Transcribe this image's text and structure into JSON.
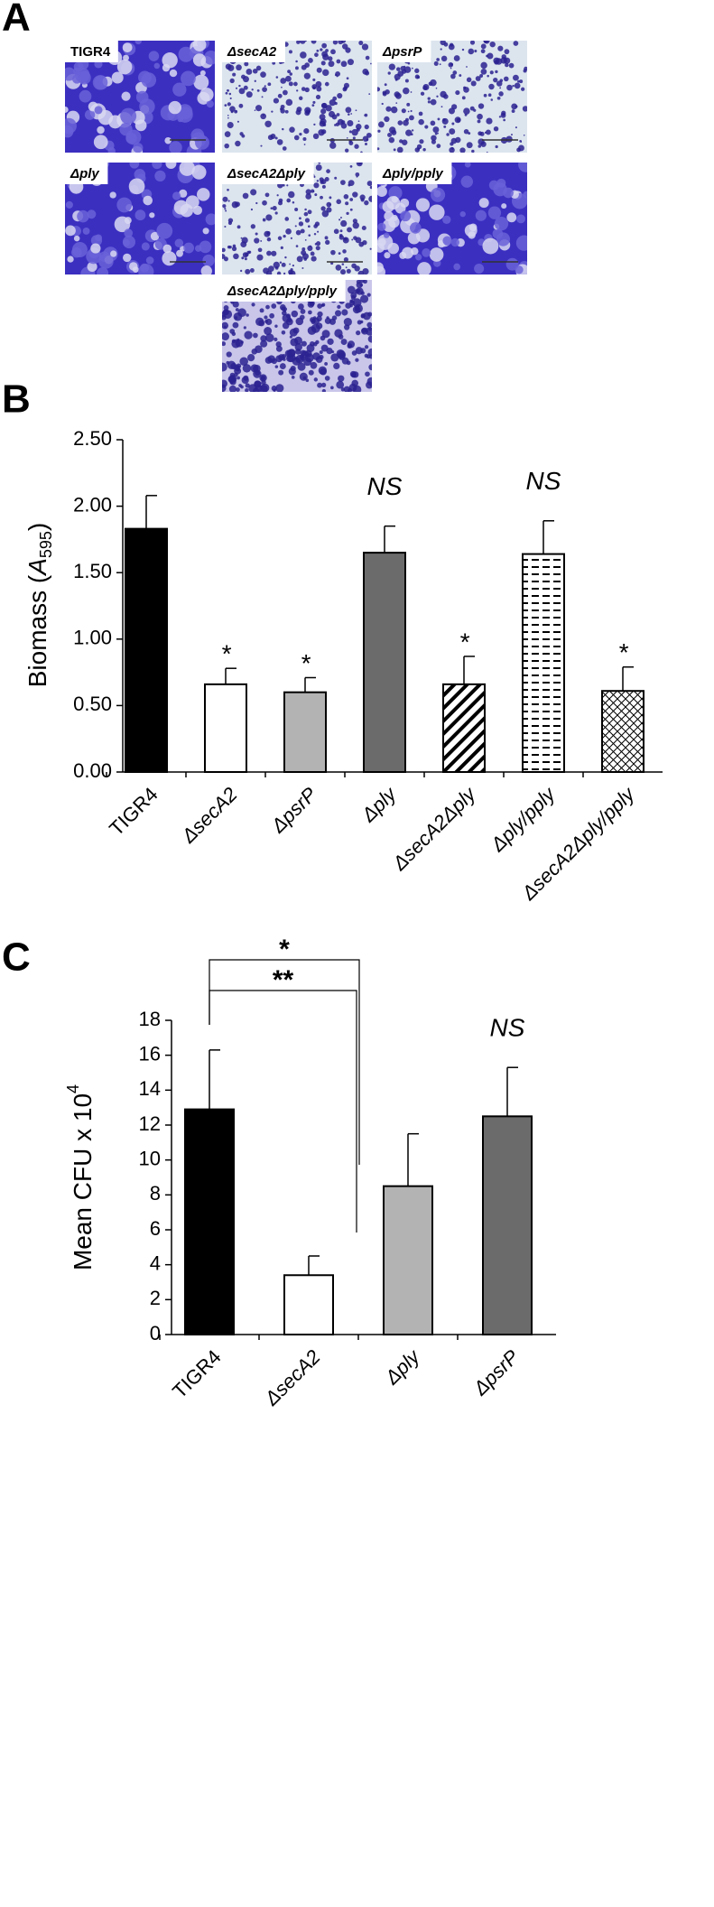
{
  "panel_a": {
    "label": "A",
    "images": [
      {
        "label": "TIGR4"
      },
      {
        "label": "ΔsecA2"
      },
      {
        "label": "ΔpsrP"
      },
      {
        "label": "Δply"
      },
      {
        "label": "ΔsecA2Δply"
      },
      {
        "label": "Δply/pply"
      },
      {
        "label": "ΔsecA2Δply/pply"
      }
    ]
  },
  "chart_data": [
    {
      "type": "bar",
      "panel": "B",
      "ylabel": {
        "pre": "Biomass (",
        "var": "A",
        "sub": "595",
        "post": ")"
      },
      "categories": [
        "TIGR4",
        "ΔsecA2",
        "ΔpsrP",
        "Δply",
        "ΔsecA2Δply",
        "Δply/pply",
        "ΔsecA2Δply/pply"
      ],
      "values": [
        1.83,
        0.66,
        0.6,
        1.65,
        0.66,
        1.64,
        0.61
      ],
      "errors": [
        0.25,
        0.12,
        0.11,
        0.2,
        0.21,
        0.25,
        0.18
      ],
      "annotations": [
        null,
        "*",
        "*",
        "NS",
        "*",
        "NS",
        "*"
      ],
      "colors": [
        "#000000",
        "#ffffff",
        "#b3b3b3",
        "#6b6b6b",
        "#ffffff",
        "#ffffff",
        "#ffffff"
      ],
      "patterns": [
        null,
        null,
        null,
        null,
        "diagonal",
        "dashes",
        "crosshatch"
      ],
      "ylim": [
        0,
        2.5
      ],
      "yticks": [
        {
          "value": 0,
          "label": "0.00"
        },
        {
          "value": 0.5,
          "label": "0.50"
        },
        {
          "value": 1,
          "label": "1.00"
        },
        {
          "value": 1.5,
          "label": "1.50"
        },
        {
          "value": 2,
          "label": "2.00"
        },
        {
          "value": 2.5,
          "label": "2.50"
        }
      ]
    },
    {
      "type": "bar",
      "panel": "C",
      "ylabel": {
        "pre": "Mean CFU x 10",
        "sup": "4"
      },
      "categories": [
        "TIGR4",
        "ΔsecA2",
        "Δply",
        "ΔpsrP"
      ],
      "values": [
        12.9,
        3.4,
        8.5,
        12.5
      ],
      "errors": [
        3.4,
        1.1,
        3.0,
        2.8
      ],
      "annotations": [
        null,
        null,
        null,
        "NS"
      ],
      "colors": [
        "#000000",
        "#ffffff",
        "#b3b3b3",
        "#6b6b6b"
      ],
      "brackets": [
        {
          "label": "**"
        },
        {
          "label": "*"
        }
      ],
      "ylim": [
        0,
        18
      ],
      "yticks": [
        0,
        2,
        4,
        6,
        8,
        10,
        12,
        14,
        16,
        18
      ]
    }
  ]
}
